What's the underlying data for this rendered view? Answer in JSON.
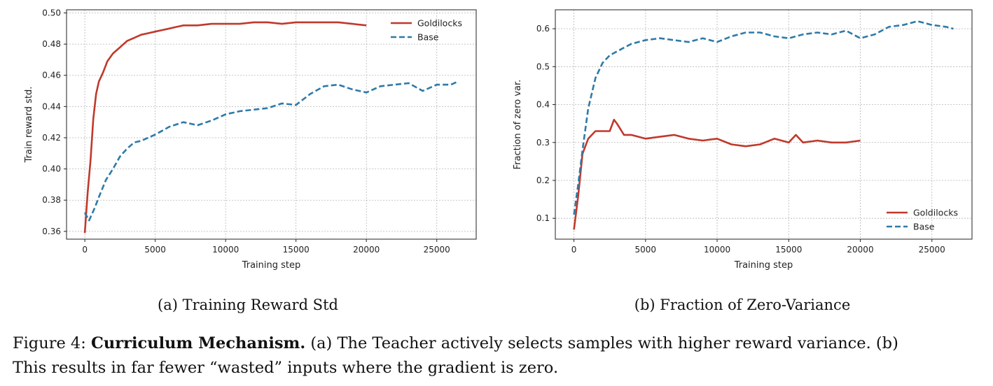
{
  "colors": {
    "goldilocks": "#c0392b",
    "base": "#2e7aa8"
  },
  "chart_data": [
    {
      "type": "line",
      "xlabel": "Training step",
      "ylabel": "Train reward std.",
      "xlim": [
        -1300,
        27800
      ],
      "ylim": [
        0.355,
        0.502
      ],
      "xticks": [
        0,
        5000,
        10000,
        15000,
        20000,
        25000
      ],
      "xtick_labels": [
        "0",
        "5000",
        "10000",
        "15000",
        "20000",
        "25000"
      ],
      "yticks": [
        0.36,
        0.38,
        0.4,
        0.42,
        0.44,
        0.46,
        0.48,
        0.5
      ],
      "ytick_labels": [
        "0.36",
        "0.38",
        "0.40",
        "0.42",
        "0.44",
        "0.46",
        "0.48",
        "0.50"
      ],
      "grid": true,
      "legend_position": "top-right",
      "caption": "(a) Training Reward Std",
      "series": [
        {
          "name": "Goldilocks",
          "style": "solid",
          "x": [
            0,
            200,
            400,
            600,
            800,
            1000,
            1300,
            1600,
            2000,
            2500,
            3000,
            3500,
            4000,
            4500,
            5000,
            5500,
            6000,
            6500,
            7000,
            8000,
            9000,
            10000,
            11000,
            12000,
            13000,
            14000,
            15000,
            16000,
            17000,
            18000,
            19000,
            20000
          ],
          "y": [
            0.359,
            0.385,
            0.405,
            0.432,
            0.448,
            0.456,
            0.462,
            0.469,
            0.474,
            0.478,
            0.482,
            0.484,
            0.486,
            0.487,
            0.488,
            0.489,
            0.49,
            0.491,
            0.492,
            0.492,
            0.493,
            0.493,
            0.493,
            0.494,
            0.494,
            0.493,
            0.494,
            0.494,
            0.494,
            0.494,
            0.493,
            0.492
          ]
        },
        {
          "name": "Base",
          "style": "dashed",
          "x": [
            0,
            300,
            700,
            1000,
            1500,
            2000,
            2500,
            3000,
            3500,
            4000,
            5000,
            6000,
            7000,
            8000,
            9000,
            10000,
            11000,
            12000,
            13000,
            14000,
            15000,
            16000,
            17000,
            18000,
            19000,
            20000,
            21000,
            22000,
            23000,
            24000,
            25000,
            26000,
            26500
          ],
          "y": [
            0.372,
            0.367,
            0.375,
            0.382,
            0.393,
            0.4,
            0.408,
            0.413,
            0.417,
            0.418,
            0.422,
            0.427,
            0.43,
            0.428,
            0.431,
            0.435,
            0.437,
            0.438,
            0.439,
            0.442,
            0.441,
            0.448,
            0.453,
            0.454,
            0.451,
            0.449,
            0.453,
            0.454,
            0.455,
            0.45,
            0.454,
            0.454,
            0.456
          ]
        }
      ]
    },
    {
      "type": "line",
      "xlabel": "Training step",
      "ylabel": "Fraction of zero var.",
      "xlim": [
        -1300,
        27800
      ],
      "ylim": [
        0.045,
        0.65
      ],
      "xticks": [
        0,
        5000,
        10000,
        15000,
        20000,
        25000
      ],
      "xtick_labels": [
        "0",
        "5000",
        "10000",
        "15000",
        "20000",
        "25000"
      ],
      "yticks": [
        0.1,
        0.2,
        0.3,
        0.4,
        0.5,
        0.6
      ],
      "ytick_labels": [
        "0.1",
        "0.2",
        "0.3",
        "0.4",
        "0.5",
        "0.6"
      ],
      "grid": true,
      "legend_position": "bottom-right",
      "caption": "(b) Fraction of Zero-Variance",
      "series": [
        {
          "name": "Goldilocks",
          "style": "solid",
          "x": [
            0,
            300,
            600,
            1000,
            1500,
            2000,
            2500,
            2800,
            3000,
            3500,
            4000,
            5000,
            6000,
            7000,
            8000,
            9000,
            10000,
            11000,
            12000,
            13000,
            14000,
            15000,
            15500,
            16000,
            17000,
            18000,
            19000,
            20000
          ],
          "y": [
            0.07,
            0.16,
            0.27,
            0.31,
            0.33,
            0.33,
            0.33,
            0.36,
            0.35,
            0.32,
            0.32,
            0.31,
            0.315,
            0.32,
            0.31,
            0.305,
            0.31,
            0.295,
            0.29,
            0.295,
            0.31,
            0.3,
            0.32,
            0.3,
            0.305,
            0.3,
            0.3,
            0.305
          ]
        },
        {
          "name": "Base",
          "style": "dashed",
          "x": [
            0,
            300,
            600,
            1000,
            1500,
            2000,
            2500,
            3000,
            3500,
            4000,
            5000,
            6000,
            7000,
            8000,
            9000,
            10000,
            11000,
            12000,
            13000,
            14000,
            15000,
            16000,
            17000,
            18000,
            19000,
            20000,
            21000,
            22000,
            23000,
            24000,
            25000,
            26000,
            26500
          ],
          "y": [
            0.11,
            0.19,
            0.28,
            0.39,
            0.47,
            0.51,
            0.53,
            0.54,
            0.55,
            0.56,
            0.57,
            0.575,
            0.57,
            0.565,
            0.575,
            0.565,
            0.58,
            0.59,
            0.59,
            0.58,
            0.575,
            0.585,
            0.59,
            0.585,
            0.595,
            0.575,
            0.585,
            0.605,
            0.61,
            0.62,
            0.61,
            0.605,
            0.6
          ]
        }
      ]
    }
  ],
  "caption": {
    "figure_label": "Figure 4:",
    "title": "Curriculum Mechanism.",
    "line1_rest": "(a) The Teacher actively selects samples with higher reward variance. (b)",
    "line2": "This results in far fewer “wasted” inputs where the gradient is zero."
  }
}
